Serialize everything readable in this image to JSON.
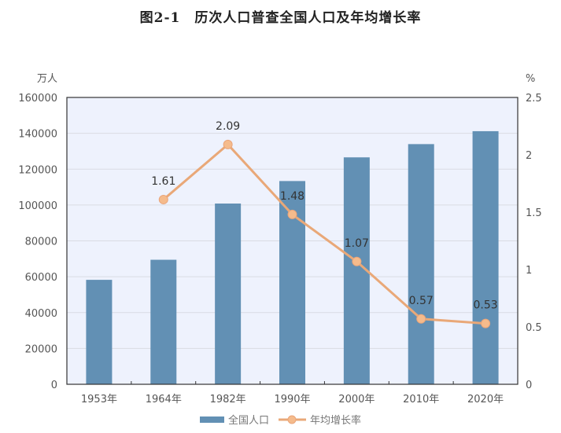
{
  "title": {
    "figure_no": "图2-1",
    "text": "历次人口普查全国人口及年均增长率"
  },
  "colors": {
    "bar": "#6290b4",
    "line": "#e9a878",
    "marker_fill": "#f5bb8c",
    "plot_bg": "#eef2fd",
    "grid": "#d9dbe3",
    "axis_text": "#555555",
    "label_text": "#333333"
  },
  "chart_data": {
    "type": "bar+line",
    "title": "图2-1 历次人口普查全国人口及年均增长率",
    "categories": [
      "1953年",
      "1964年",
      "1982年",
      "1990年",
      "2000年",
      "2010年",
      "2020年"
    ],
    "series": [
      {
        "name": "全国人口",
        "type": "bar",
        "axis": "left",
        "values": [
          58260,
          69458,
          100818,
          113368,
          126583,
          133972,
          141178
        ]
      },
      {
        "name": "年均增长率",
        "type": "line",
        "axis": "right",
        "values": [
          null,
          1.61,
          2.09,
          1.48,
          1.07,
          0.57,
          0.53
        ],
        "data_labels": [
          "",
          "1.61",
          "2.09",
          "1.48",
          "1.07",
          "0.57",
          "0.53"
        ]
      }
    ],
    "left_axis": {
      "unit": "万人",
      "range": [
        0,
        160000
      ],
      "ticks": [
        "0",
        "20000",
        "40000",
        "60000",
        "80000",
        "100000",
        "120000",
        "140000",
        "160000"
      ]
    },
    "right_axis": {
      "unit": "%",
      "range": [
        0,
        2.5
      ],
      "ticks": [
        "0",
        "0.5",
        "1",
        "1.5",
        "2",
        "2.5"
      ]
    },
    "grid": true,
    "legend": {
      "position": "bottom",
      "entries": [
        "全国人口",
        "年均增长率"
      ]
    }
  }
}
